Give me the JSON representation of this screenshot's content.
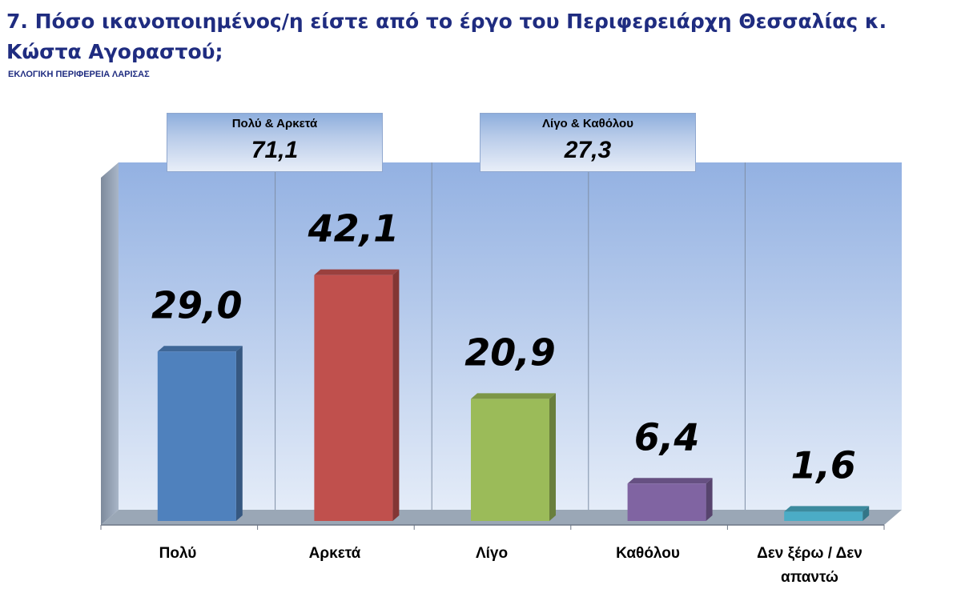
{
  "header": {
    "title": "7. Πόσο ικανοποιημένος/η είστε από το έργο του Περιφερειάρχη Θεσσαλίας κ. Κώστα Αγοραστού;",
    "subtitle": "ΕΚΛΟΓΙΚΗ ΠΕΡΙΦΕΡΕΙΑ ΛΑΡΙΣΑΣ"
  },
  "groups": [
    {
      "label": "Πολύ & Αρκετά",
      "value": "71,1"
    },
    {
      "label": "Λίγο & Καθόλου",
      "value": "27,3"
    }
  ],
  "chart_data": {
    "type": "bar",
    "categories": [
      "Πολύ",
      "Αρκετά",
      "Λίγο",
      "Καθόλου",
      "Δεν ξέρω / Δεν απαντώ"
    ],
    "values": [
      29.0,
      42.1,
      20.9,
      6.4,
      1.6
    ],
    "value_labels": [
      "29,0",
      "42,1",
      "20,9",
      "6,4",
      "1,6"
    ],
    "colors": [
      "#4f81bd",
      "#c0504d",
      "#9bbb59",
      "#8064a2",
      "#4bacc6"
    ],
    "ylim": [
      0,
      55
    ],
    "grid": false,
    "style": "3d-bar"
  }
}
